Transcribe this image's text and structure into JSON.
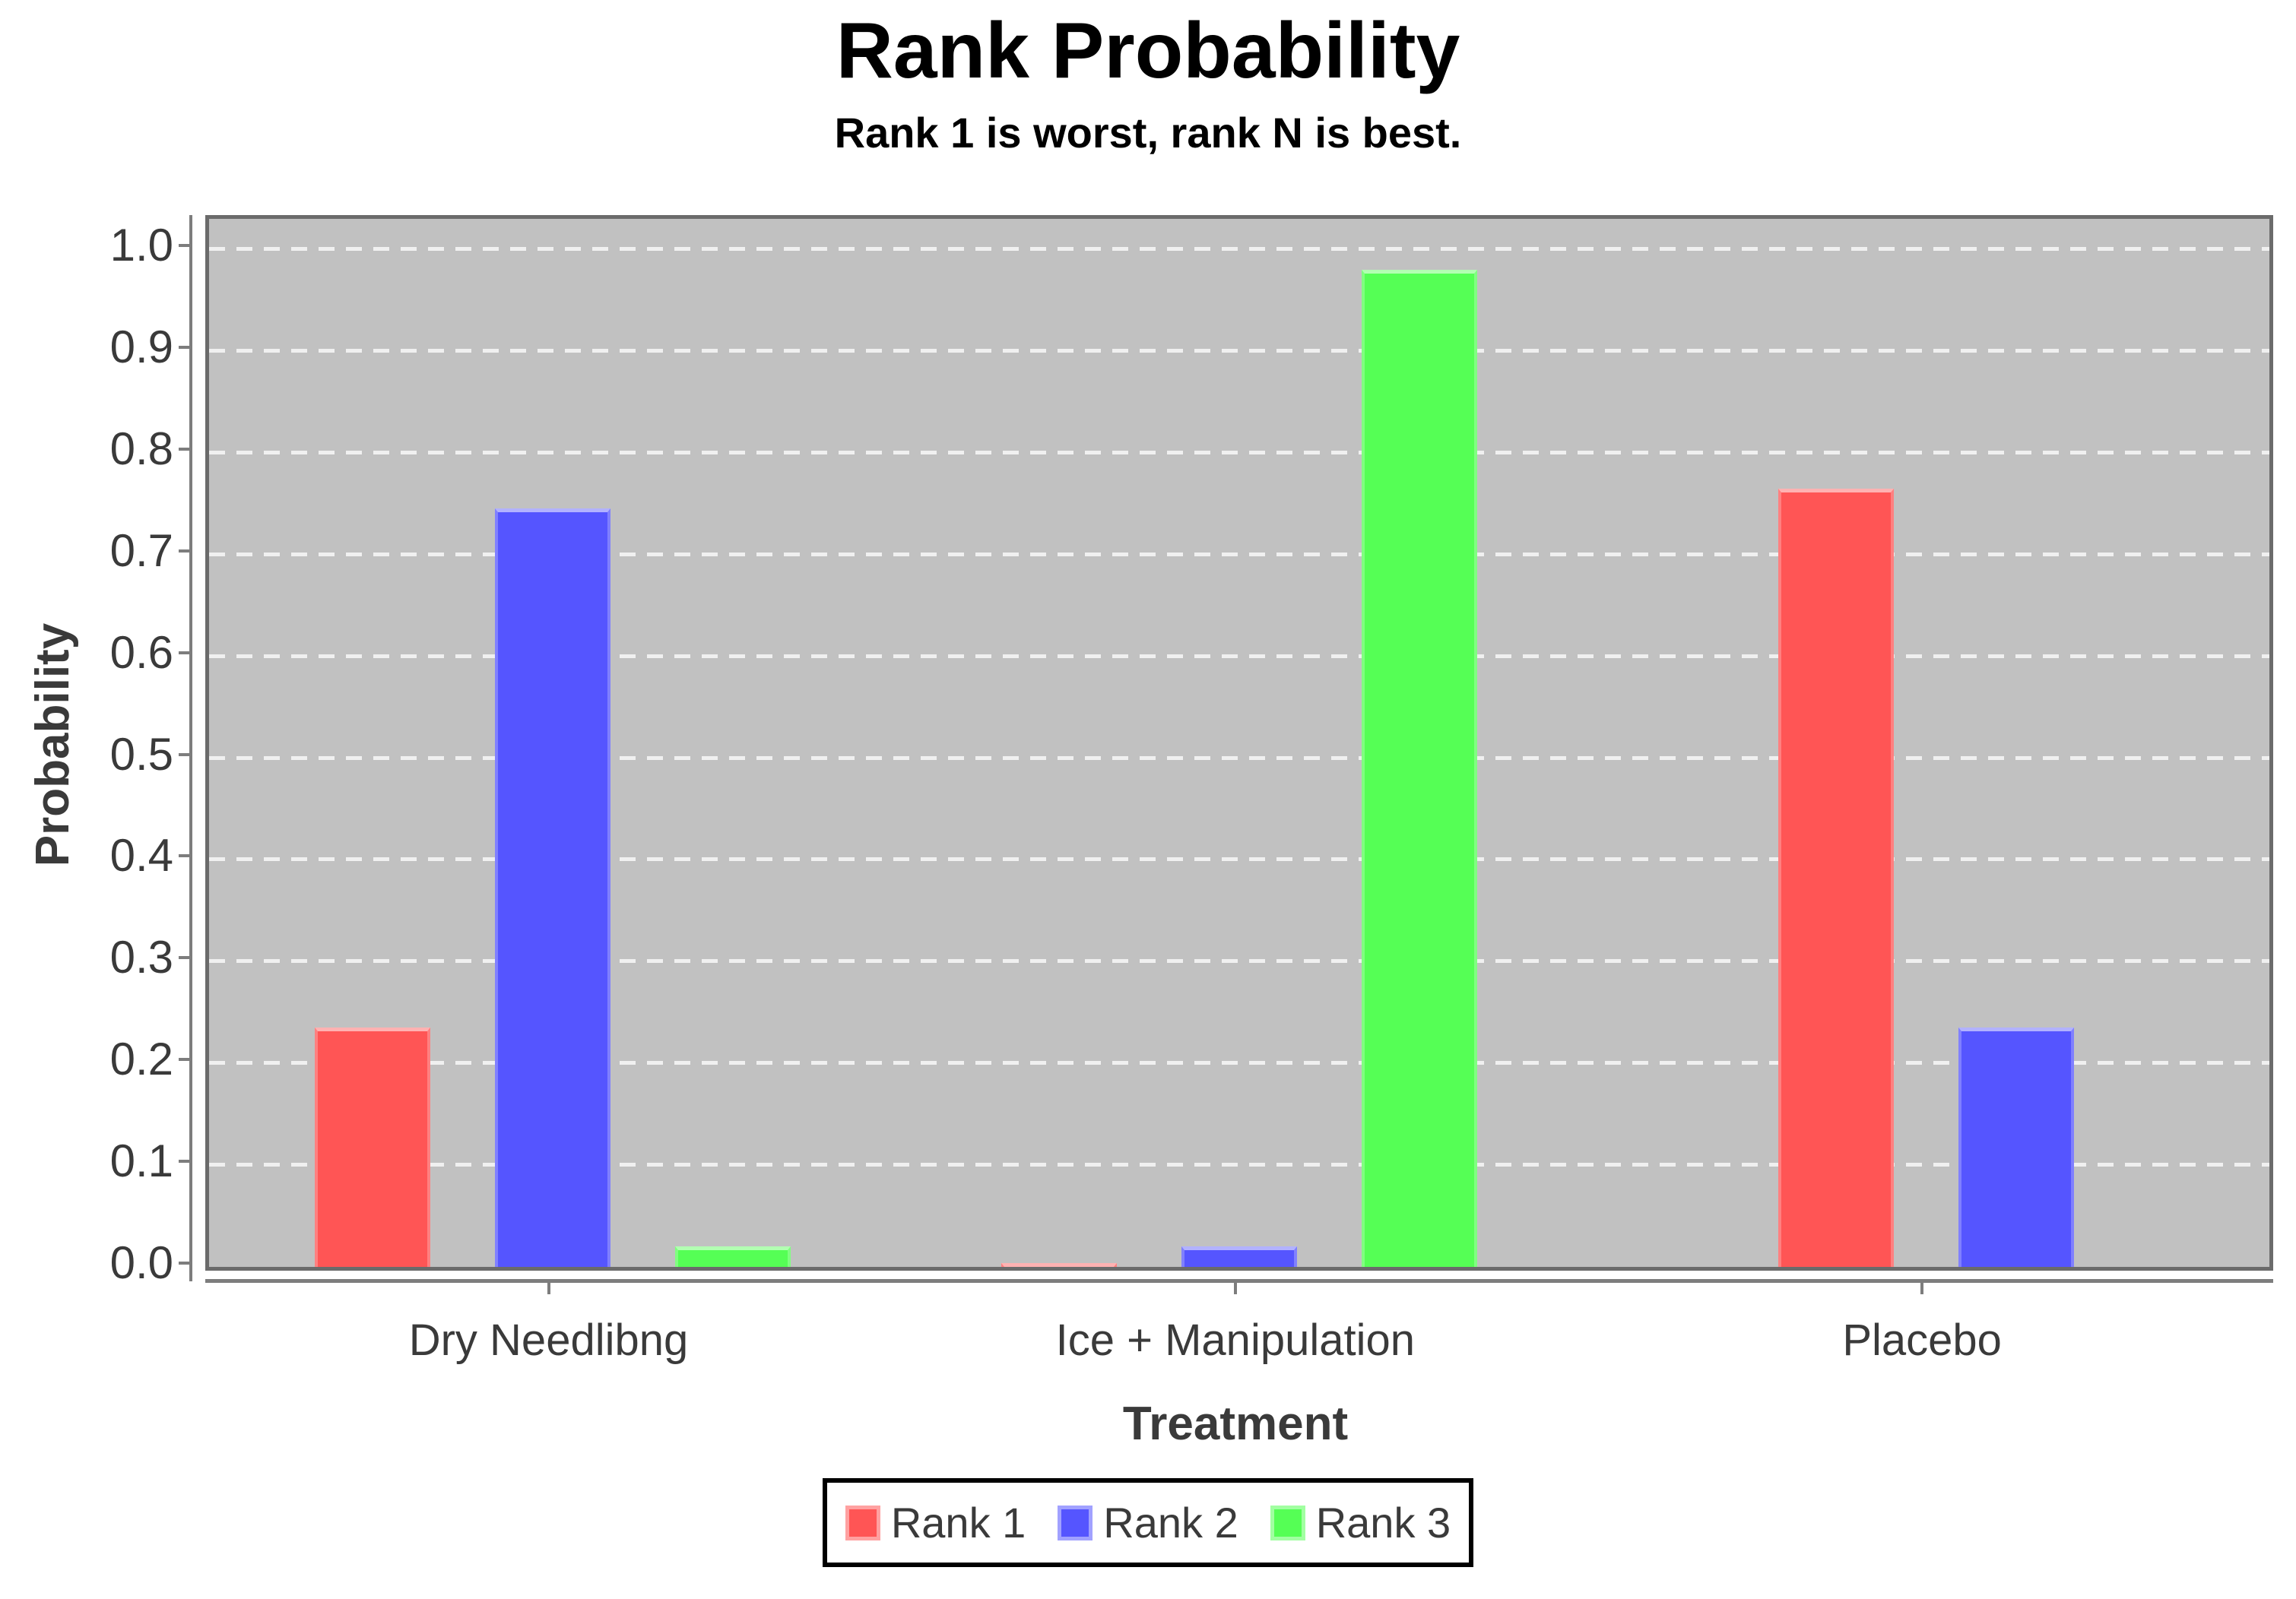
{
  "chart_data": {
    "type": "bar",
    "title": "Rank Probability",
    "subtitle": "Rank 1 is worst, rank N is best.",
    "xlabel": "Treatment",
    "ylabel": "Probability",
    "categories": [
      "Dry Needlibng",
      "Ice + Manipulation",
      "Placebo"
    ],
    "series": [
      {
        "name": "Rank 1",
        "color": "#ff5555",
        "values": [
          0.235,
          0.004,
          0.765
        ]
      },
      {
        "name": "Rank 2",
        "color": "#5555ff",
        "values": [
          0.745,
          0.02,
          0.235
        ]
      },
      {
        "name": "Rank 3",
        "color": "#55ff55",
        "values": [
          0.02,
          0.98,
          0.0
        ]
      }
    ],
    "ylim": [
      0,
      1.03
    ],
    "ytick_labels": [
      "0.0",
      "0.1",
      "0.2",
      "0.3",
      "0.4",
      "0.5",
      "0.6",
      "0.7",
      "0.8",
      "0.9",
      "1.0"
    ],
    "grid": "horizontal-dashed-white",
    "legend_position": "bottom",
    "legend": [
      "Rank 1",
      "Rank 2",
      "Rank 3"
    ]
  },
  "colors": {
    "background": "#ffffff",
    "plot_background": "#c1c1c1",
    "plot_border": "#6b6b6b",
    "axis_line": "#7d7d7d",
    "gridline": "#f0f0f0",
    "text": "#3a3a3a",
    "title_text": "#000000",
    "legend_border": "#000000",
    "rank1": "#ff5555",
    "rank2": "#5555ff",
    "rank3": "#55ff55"
  }
}
